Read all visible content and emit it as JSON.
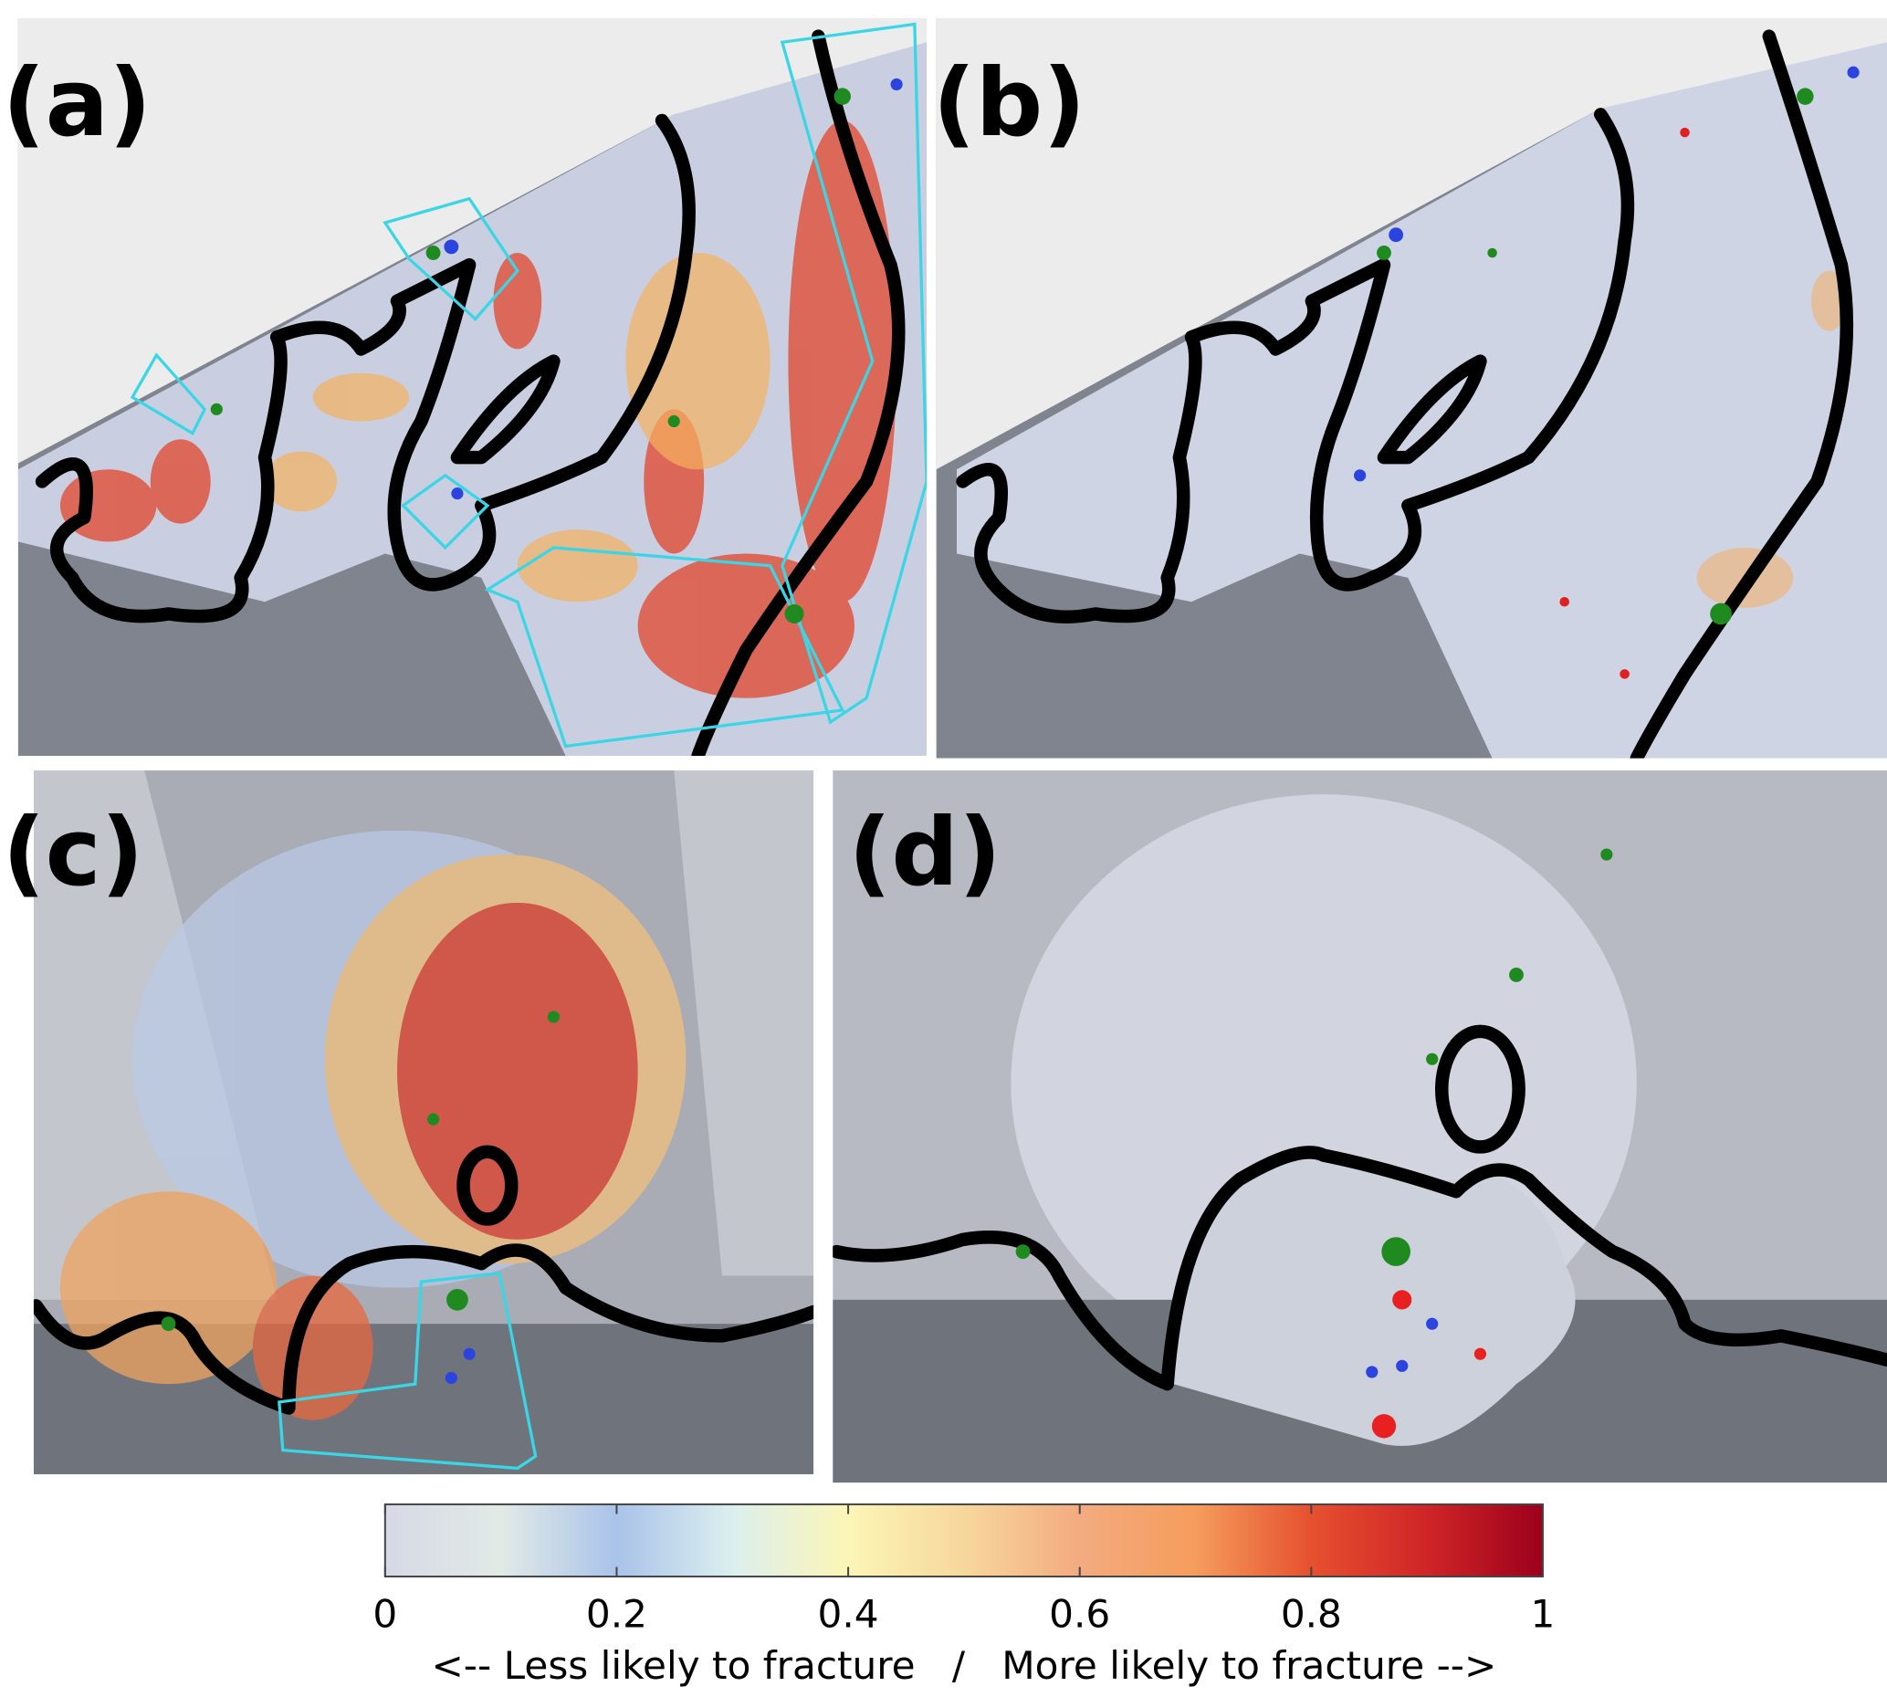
{
  "panels": [
    {
      "label": "(a)"
    },
    {
      "label": "(b)"
    },
    {
      "label": "(c)"
    },
    {
      "label": "(d)"
    }
  ],
  "colorbar": {
    "lim": [
      0,
      1
    ],
    "ticks": [
      0,
      0.2,
      0.4,
      0.6,
      0.8,
      1
    ],
    "colors": [
      "#d6d9e6",
      "#e2eae6",
      "#a9c3ea",
      "#dcefef",
      "#fcf6b6",
      "#f7d79c",
      "#f3ab80",
      "#f59d5c",
      "#e6502f",
      "#cf2527",
      "#9c001c"
    ],
    "label": "<-- Less likely to fracture   /   More likely to fracture -->"
  }
}
